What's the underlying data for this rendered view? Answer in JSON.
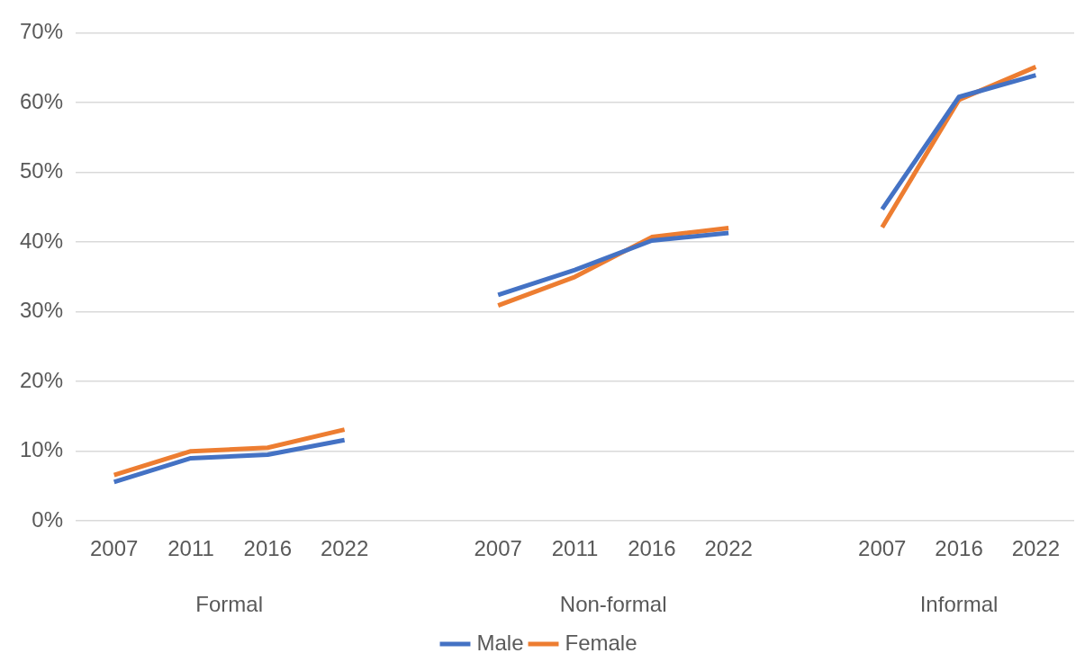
{
  "chart_data": {
    "type": "line",
    "categories": [
      "2007",
      "2011",
      "2016",
      "2022",
      null,
      "2007",
      "2011",
      "2016",
      "2022",
      null,
      "2007",
      "2016",
      "2022"
    ],
    "series": [
      {
        "name": "Male",
        "color": "#4472c4",
        "values": [
          5.6,
          9.0,
          9.5,
          11.6,
          null,
          32.4,
          36.0,
          40.2,
          41.3,
          null,
          44.7,
          60.8,
          63.9
        ]
      },
      {
        "name": "Female",
        "color": "#ed7d31",
        "values": [
          6.6,
          10.0,
          10.5,
          13.1,
          null,
          30.9,
          35.0,
          40.7,
          42.0,
          null,
          42.1,
          60.4,
          65.1
        ]
      }
    ],
    "annotations": [
      "Formal",
      "Non-formal",
      "Informal"
    ],
    "ylim": [
      0,
      70
    ],
    "yticks": [
      {
        "value": 0,
        "label": "0%"
      },
      {
        "value": 10,
        "label": "10%"
      },
      {
        "value": 20,
        "label": "20%"
      },
      {
        "value": 30,
        "label": "30%"
      },
      {
        "value": 40,
        "label": "40%"
      },
      {
        "value": 50,
        "label": "50%"
      },
      {
        "value": 60,
        "label": "60%"
      },
      {
        "value": 70,
        "label": "70%"
      }
    ],
    "grid": "y",
    "legend": "bottom",
    "marker": "none",
    "line_style": "solid"
  }
}
